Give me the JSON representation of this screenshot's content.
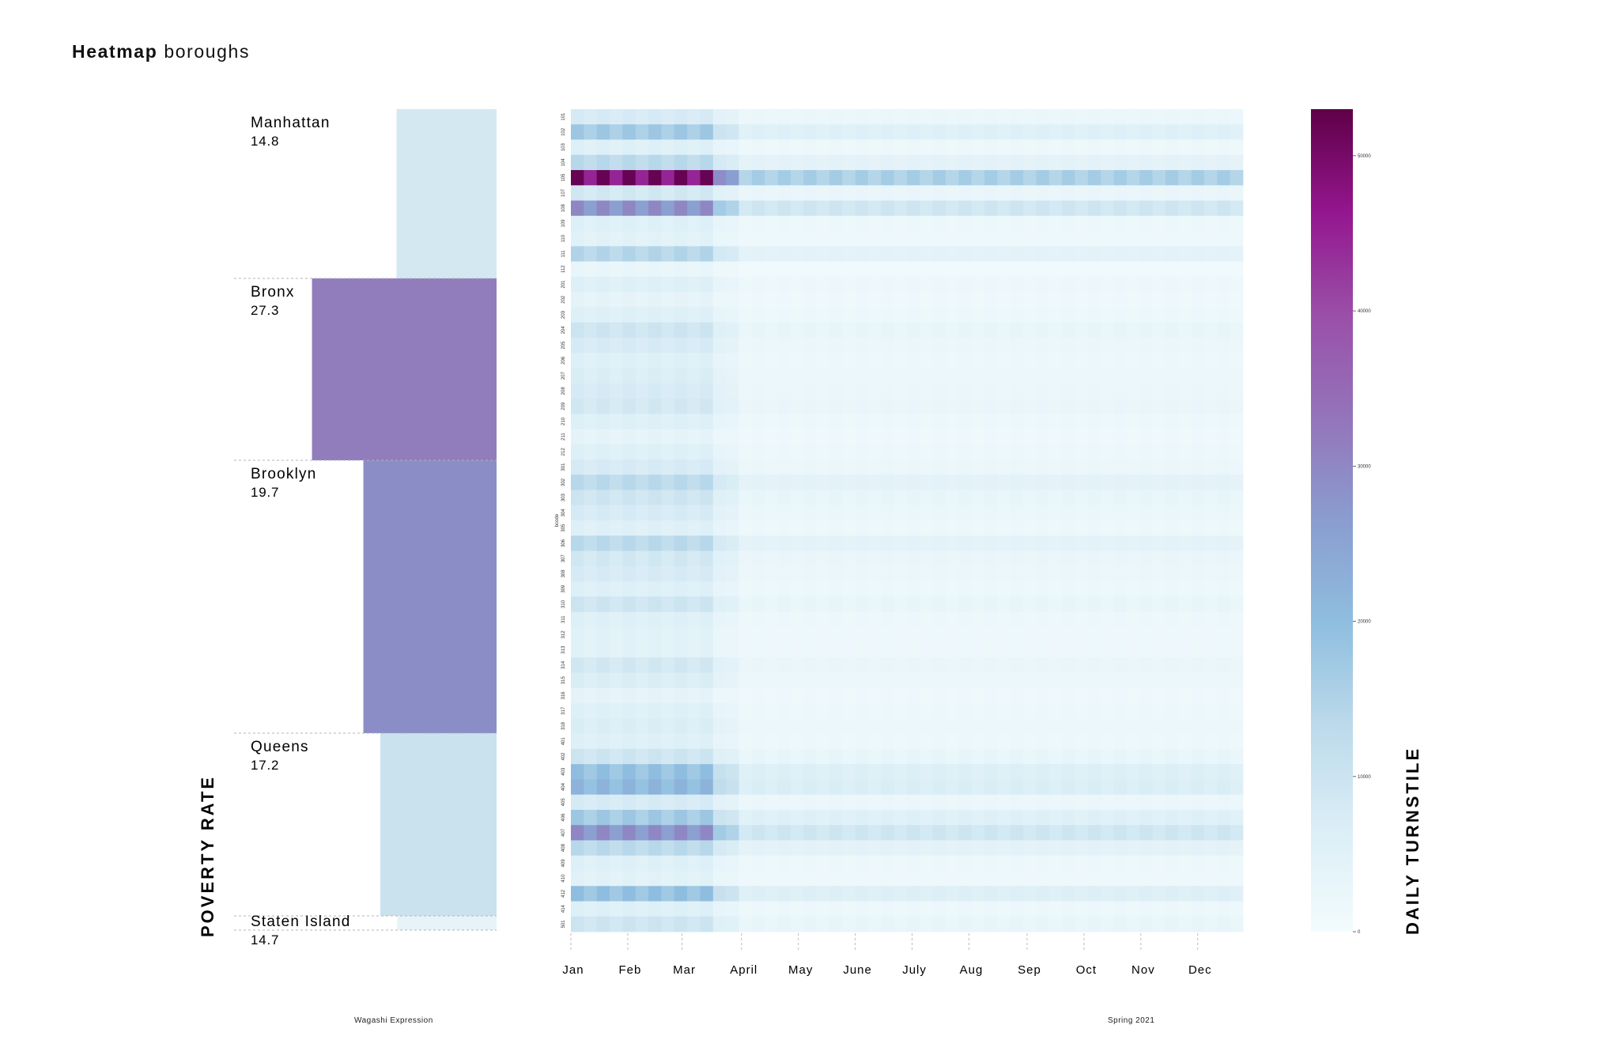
{
  "page": {
    "title_bold": "Heatmap",
    "title_rest": " boroughs",
    "footer_left": "Wagashi Expression",
    "footer_right": "Spring 2021"
  },
  "colors": {
    "scale": [
      "#f3fbfd",
      "#dbeef6",
      "#bcdaeb",
      "#8fbedf",
      "#8a9dcf",
      "#9474ba",
      "#9a4fa8",
      "#94168e",
      "#5f0048"
    ]
  },
  "chart_data": [
    {
      "type": "bar",
      "orientation": "horizontal",
      "ylabel": "POVERTY RATE",
      "categories": [
        "Manhattan",
        "Bronx",
        "Brooklyn",
        "Queens",
        "Staten Island"
      ],
      "values": [
        14.8,
        27.3,
        19.7,
        17.2,
        14.7
      ],
      "value_labels": [
        "14.8",
        "27.3",
        "19.7",
        "17.2",
        "14.7"
      ],
      "bar_colors": [
        "#d4e8f2",
        "#917dbc",
        "#8b8ec6",
        "#c9e2ee",
        "#e6f3f9"
      ]
    },
    {
      "type": "heatmap",
      "title": "",
      "ylabel": "bcode",
      "colorbar_label": "DAILY TURNSTILE",
      "x_months": [
        "Jan",
        "Feb",
        "Mar",
        "April",
        "May",
        "June",
        "July",
        "Aug",
        "Sep",
        "Oct",
        "Nov",
        "Dec"
      ],
      "x_range_weeks": [
        0,
        52
      ],
      "y_codes": [
        "101",
        "102",
        "103",
        "104",
        "105",
        "107",
        "108",
        "109",
        "110",
        "111",
        "112",
        "201",
        "202",
        "203",
        "204",
        "205",
        "206",
        "207",
        "208",
        "209",
        "210",
        "211",
        "212",
        "301",
        "302",
        "303",
        "304",
        "305",
        "306",
        "307",
        "308",
        "309",
        "310",
        "311",
        "312",
        "313",
        "314",
        "315",
        "316",
        "317",
        "318",
        "401",
        "402",
        "403",
        "404",
        "405",
        "406",
        "407",
        "408",
        "409",
        "410",
        "412",
        "414",
        "501"
      ],
      "row_intensity": [
        8000,
        18000,
        6000,
        14000,
        52000,
        9000,
        30000,
        6000,
        5000,
        15000,
        3000,
        6000,
        4000,
        6000,
        10000,
        8000,
        6000,
        7000,
        8000,
        9000,
        6000,
        4000,
        6000,
        8000,
        14000,
        10000,
        8000,
        6000,
        14000,
        9000,
        8000,
        6000,
        10000,
        6000,
        5000,
        5000,
        9000,
        7000,
        4000,
        6000,
        7000,
        6000,
        10000,
        20000,
        22000,
        8000,
        18000,
        30000,
        14000,
        6000,
        5000,
        20000,
        6000,
        10000
      ],
      "post_march_factor": 0.32,
      "colorbar_range": [
        0,
        53000
      ],
      "colorbar_ticks": [
        0,
        10000,
        20000,
        30000,
        40000,
        50000
      ],
      "colorbar_tick_labels": [
        "0",
        "10000",
        "20000",
        "30000",
        "40000",
        "50000"
      ]
    }
  ]
}
